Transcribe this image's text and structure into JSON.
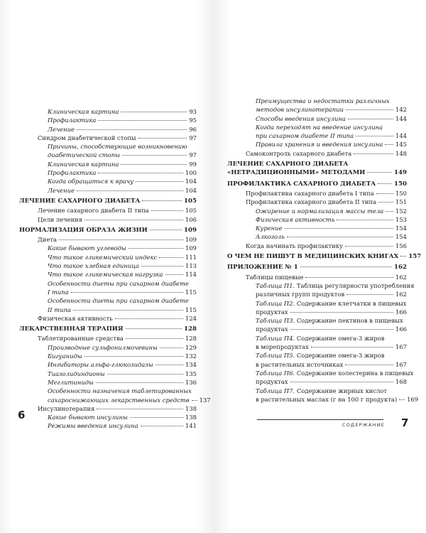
{
  "left_page": {
    "folio": "6",
    "entries": [
      {
        "level": 2,
        "lines": [
          "Клиническая картина"
        ],
        "page": "93"
      },
      {
        "level": 2,
        "lines": [
          "Профилактика"
        ],
        "page": "95"
      },
      {
        "level": 2,
        "lines": [
          "Лечение"
        ],
        "page": "96"
      },
      {
        "level": 1,
        "lines": [
          "Синдром диабетической стопы"
        ],
        "page": "97"
      },
      {
        "level": 2,
        "lines": [
          "Причины, способствующие возникновению",
          "диабетической стопы"
        ],
        "page": "97"
      },
      {
        "level": 2,
        "lines": [
          "Клиническая картина"
        ],
        "page": "99"
      },
      {
        "level": 2,
        "lines": [
          "Профилактика"
        ],
        "page": "100"
      },
      {
        "level": 2,
        "lines": [
          "Когда обращаться к врачу"
        ],
        "page": "104"
      },
      {
        "level": 2,
        "lines": [
          "Лечение"
        ],
        "page": "104"
      },
      {
        "level": 0,
        "lines": [
          "ЛЕЧЕНИЕ САХАРНОГО ДИАБЕТА"
        ],
        "page": "105"
      },
      {
        "level": 1,
        "lines": [
          "Лечение сахарного диабета II типа"
        ],
        "page": "105"
      },
      {
        "level": 1,
        "lines": [
          "Цели лечения"
        ],
        "page": "106"
      },
      {
        "level": 0,
        "lines": [
          "НОРМАЛИЗАЦИЯ ОБРАЗА ЖИЗНИ"
        ],
        "page": "109"
      },
      {
        "level": 1,
        "lines": [
          "Диета"
        ],
        "page": "109"
      },
      {
        "level": 2,
        "lines": [
          "Какие бывают углеводы"
        ],
        "page": "109"
      },
      {
        "level": 2,
        "lines": [
          "Что такое гликемический индекс"
        ],
        "page": "111"
      },
      {
        "level": 2,
        "lines": [
          "Что такое хлебная единица"
        ],
        "page": "113"
      },
      {
        "level": 2,
        "lines": [
          "Что такое гликемическая нагрузка"
        ],
        "page": "114"
      },
      {
        "level": 2,
        "lines": [
          "Особенности диеты при сахарном диабете",
          "I типа"
        ],
        "page": "115"
      },
      {
        "level": 2,
        "lines": [
          "Особенности диеты при сахарном диабете",
          "II типа"
        ],
        "page": "115"
      },
      {
        "level": 1,
        "lines": [
          "Физическая активность"
        ],
        "page": "124"
      },
      {
        "level": 0,
        "lines": [
          "ЛЕКАРСТВЕННАЯ ТЕРАПИЯ"
        ],
        "page": "128"
      },
      {
        "level": 1,
        "lines": [
          "Таблетированные средства"
        ],
        "page": "128"
      },
      {
        "level": 2,
        "lines": [
          "Производные сульфонилмочевины"
        ],
        "page": "129"
      },
      {
        "level": 2,
        "lines": [
          "Бигуаниды"
        ],
        "page": "132"
      },
      {
        "level": 2,
        "lines": [
          "Ингибиторы альфа-глюкозидазы"
        ],
        "page": "134"
      },
      {
        "level": 2,
        "lines": [
          "Тиазолидиндионы"
        ],
        "page": "135"
      },
      {
        "level": 2,
        "lines": [
          "Меглитиниды"
        ],
        "page": "136"
      },
      {
        "level": 2,
        "lines": [
          "Особенности назначения таблетированных",
          "сахароснижающих лекарственных средств"
        ],
        "page": "137"
      },
      {
        "level": 1,
        "lines": [
          "Инсулинотерапия"
        ],
        "page": "138"
      },
      {
        "level": 2,
        "lines": [
          "Какие бывают инсулины"
        ],
        "page": "138"
      },
      {
        "level": 2,
        "lines": [
          "Режимы введения инсулина"
        ],
        "page": "141"
      }
    ]
  },
  "right_page": {
    "folio": "7",
    "running_head": "СОДЕРЖАНИЕ",
    "entries": [
      {
        "level": 2,
        "lines": [
          "Преимущества и недостатки различных",
          "методов инсулинотерапии"
        ],
        "page": "142"
      },
      {
        "level": 2,
        "lines": [
          "Способы введения инсулина"
        ],
        "page": "144"
      },
      {
        "level": 2,
        "lines": [
          "Когда переходят на введение инсулина",
          "при сахарном диабете II типа"
        ],
        "page": "144"
      },
      {
        "level": 2,
        "lines": [
          "Правила хранения и введения инсулина"
        ],
        "page": "145"
      },
      {
        "level": 1,
        "lines": [
          "Самоконтроль сахарного диабета"
        ],
        "page": "148"
      },
      {
        "level": 0,
        "lines": [
          "ЛЕЧЕНИЕ САХАРНОГО ДИАБЕТА",
          "«НЕТРАДИЦИОННЫМИ» МЕТОДАМИ"
        ],
        "page": "149"
      },
      {
        "level": 0,
        "lines": [
          "ПРОФИЛАКТИКА САХАРНОГО ДИАБЕТА"
        ],
        "page": "150"
      },
      {
        "level": 1,
        "lines": [
          "Профилактика сахарного диабета I типа"
        ],
        "page": "150"
      },
      {
        "level": 1,
        "lines": [
          "Профилактика сахарного диабета II типа"
        ],
        "page": "151"
      },
      {
        "level": 2,
        "lines": [
          "Ожирение и нормализация массы тела"
        ],
        "page": "152"
      },
      {
        "level": 2,
        "lines": [
          "Физическая активность"
        ],
        "page": "153"
      },
      {
        "level": 2,
        "lines": [
          "Курение"
        ],
        "page": "154"
      },
      {
        "level": 2,
        "lines": [
          "Алкоголь"
        ],
        "page": "154"
      },
      {
        "level": 1,
        "lines": [
          "Когда начинать профилактику"
        ],
        "page": "156"
      },
      {
        "level": 0,
        "lines": [
          "О ЧЕМ НЕ ПИШУТ В МЕДИЦИНСКИХ КНИГАХ"
        ],
        "page": "157"
      },
      {
        "level": 0,
        "lines": [
          "ПРИЛОЖЕНИЕ № 1"
        ],
        "page": "162"
      },
      {
        "level": 1,
        "lines": [
          "Таблицы пищевые"
        ],
        "page": "162"
      },
      {
        "level": 2,
        "prefix": "Таблица П1.",
        "lines": [
          " Таблица регулярности употребления",
          "различных групп продуктов"
        ],
        "page": "162"
      },
      {
        "level": 2,
        "prefix": "Таблица П2.",
        "lines": [
          " Содержание клетчатки в пищевых",
          "продуктах"
        ],
        "page": "166"
      },
      {
        "level": 2,
        "prefix": "Таблица П3.",
        "lines": [
          " Содержание пектинов в пищевых",
          "продуктах"
        ],
        "page": "166"
      },
      {
        "level": 2,
        "prefix": "Таблица П4.",
        "lines": [
          " Содержание омега-3 жиров",
          "в морепродуктах"
        ],
        "page": "167"
      },
      {
        "level": 2,
        "prefix": "Таблица П5.",
        "lines": [
          " Содержание омега-3 жиров",
          "в растительных источниках"
        ],
        "page": "167"
      },
      {
        "level": 2,
        "prefix": "Таблица П6.",
        "lines": [
          " Содержание холестерина в пищевых",
          "продуктах"
        ],
        "page": "168"
      },
      {
        "level": 2,
        "prefix": "Таблица П7.",
        "lines": [
          " Содержание жирных кислот",
          "в растительных маслах (г на 100 г продукта)"
        ],
        "page": "169"
      }
    ]
  }
}
